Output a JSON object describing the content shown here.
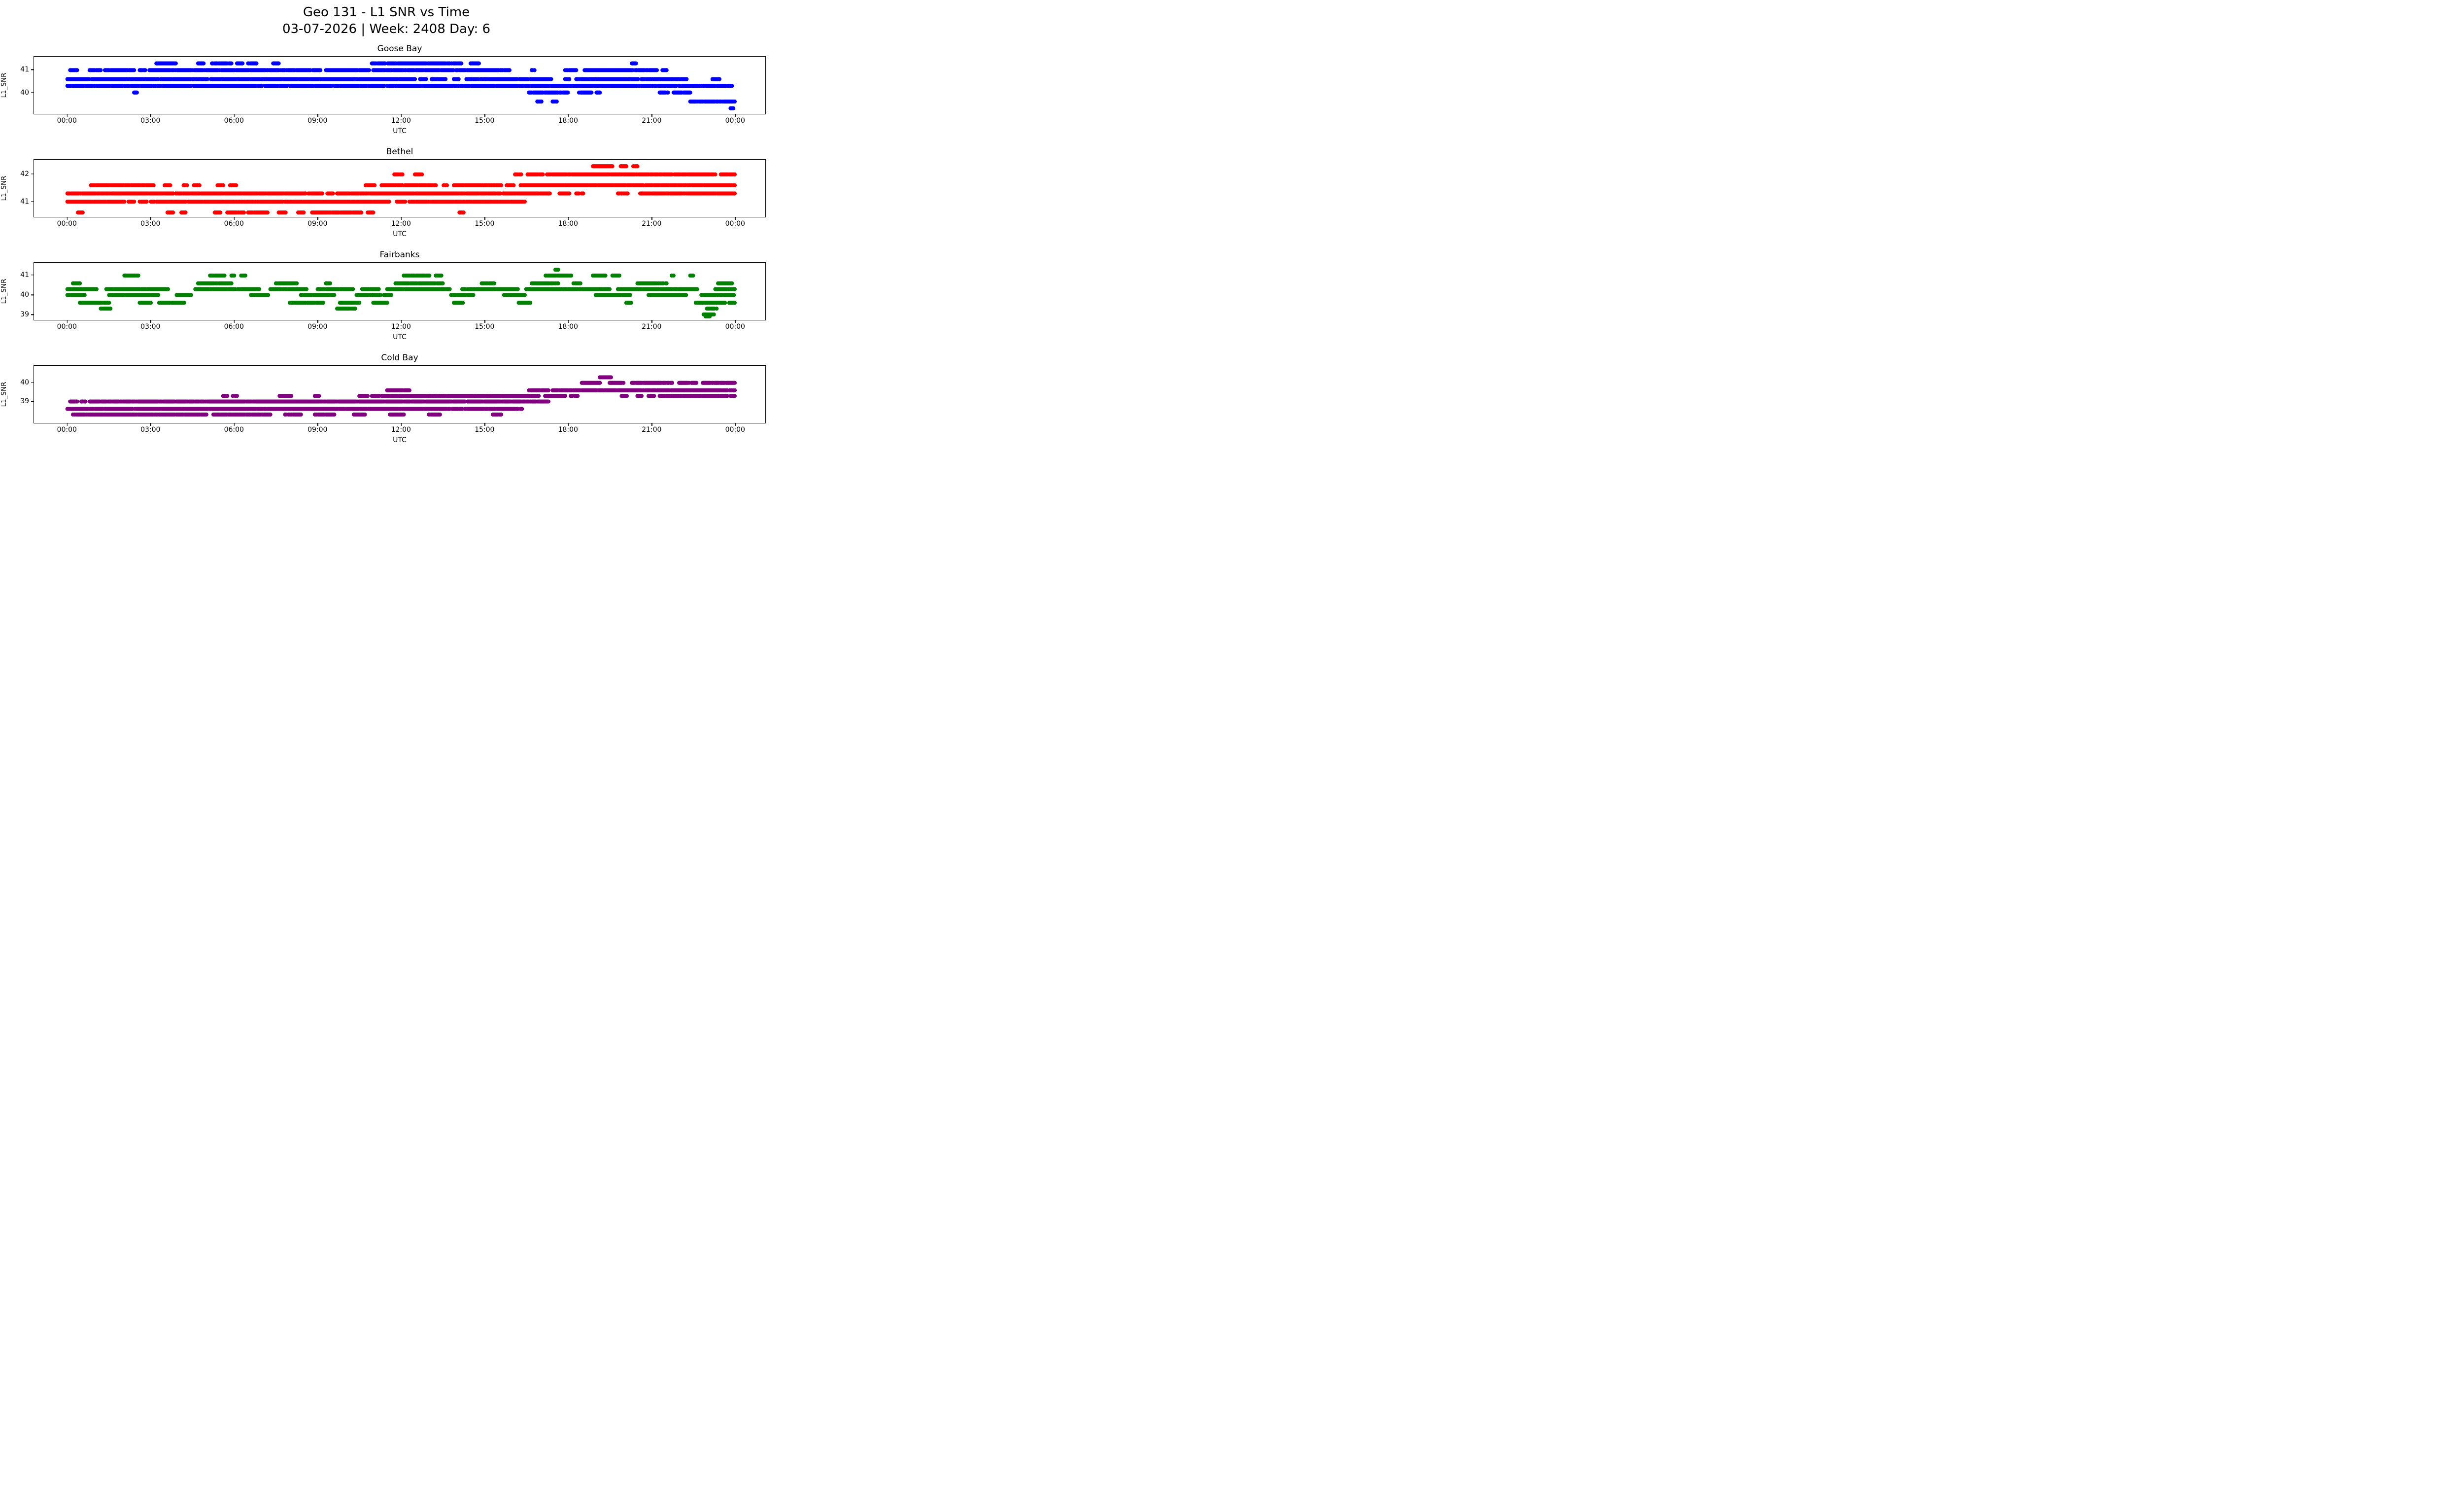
{
  "figure": {
    "title_line1": "Geo 131 - L1 SNR vs Time",
    "title_line2": "03-07-2026 | Week: 2408 Day: 6"
  },
  "axis": {
    "xlabel": "UTC",
    "ylabel": "L1_SNR",
    "xlim_hours": [
      -1.2,
      25.1
    ],
    "xtick_hours": [
      0,
      3,
      6,
      9,
      12,
      15,
      18,
      21,
      24
    ],
    "xticklabels": [
      "00:00",
      "03:00",
      "06:00",
      "09:00",
      "12:00",
      "15:00",
      "18:00",
      "21:00",
      "00:00"
    ],
    "grid": false,
    "legend": "none",
    "run_format": "[start_hour_utc, end_hour_utc] dense runs of scatter points at the given L1 SNR level"
  },
  "chart_data": [
    {
      "type": "scatter",
      "title": "Goose Bay",
      "color": "#0000ff",
      "xlabel": "UTC",
      "ylabel": "L1_SNR",
      "ylim": [
        39.05,
        41.6
      ],
      "yticks": [
        41,
        40
      ],
      "yticklabels": [
        "41",
        "40"
      ],
      "series": [
        {
          "snr": 41.3,
          "runs": [
            [
              3.2,
              3.9
            ],
            [
              4.7,
              4.9
            ],
            [
              5.2,
              5.9
            ],
            [
              6.1,
              6.3
            ],
            [
              6.5,
              6.8
            ],
            [
              7.4,
              7.6
            ],
            [
              10.95,
              14.2
            ],
            [
              14.5,
              14.8
            ],
            [
              20.3,
              20.45
            ]
          ]
        },
        {
          "snr": 41.0,
          "runs": [
            [
              0.1,
              0.35
            ],
            [
              0.8,
              1.2
            ],
            [
              1.35,
              2.4
            ],
            [
              2.6,
              2.8
            ],
            [
              2.95,
              9.1
            ],
            [
              9.3,
              10.85
            ],
            [
              11.0,
              15.9
            ],
            [
              16.7,
              16.8
            ],
            [
              17.9,
              18.3
            ],
            [
              18.6,
              21.2
            ],
            [
              21.4,
              21.55
            ]
          ]
        },
        {
          "snr": 40.6,
          "runs": [
            [
              0.0,
              12.5
            ],
            [
              12.65,
              12.9
            ],
            [
              13.1,
              13.6
            ],
            [
              13.9,
              14.1
            ],
            [
              14.35,
              17.4
            ],
            [
              17.9,
              18.05
            ],
            [
              18.3,
              22.3
            ],
            [
              23.2,
              23.45
            ]
          ]
        },
        {
          "snr": 40.3,
          "runs": [
            [
              0.0,
              7.0
            ],
            [
              7.1,
              11.4
            ],
            [
              11.5,
              16.2
            ],
            [
              16.25,
              21.9
            ],
            [
              22.0,
              23.9
            ]
          ]
        },
        {
          "snr": 40.0,
          "runs": [
            [
              2.4,
              2.5
            ],
            [
              16.6,
              18.0
            ],
            [
              18.4,
              18.85
            ],
            [
              19.0,
              19.15
            ],
            [
              21.3,
              21.6
            ],
            [
              21.8,
              22.4
            ]
          ]
        },
        {
          "snr": 39.6,
          "runs": [
            [
              16.9,
              17.05
            ],
            [
              17.45,
              17.6
            ],
            [
              22.4,
              24.0
            ]
          ]
        },
        {
          "snr": 39.3,
          "runs": [
            [
              23.85,
              23.95
            ]
          ]
        }
      ]
    },
    {
      "type": "scatter",
      "title": "Bethel",
      "color": "#ff0000",
      "xlabel": "UTC",
      "ylabel": "L1_SNR",
      "ylim": [
        40.44,
        42.54
      ],
      "yticks": [
        42,
        41
      ],
      "yticklabels": [
        "42",
        "41"
      ],
      "series": [
        {
          "snr": 42.3,
          "runs": [
            [
              18.9,
              19.6
            ],
            [
              19.9,
              20.1
            ],
            [
              20.35,
              20.5
            ]
          ]
        },
        {
          "snr": 42.0,
          "runs": [
            [
              11.7,
              12.05
            ],
            [
              12.5,
              12.75
            ],
            [
              16.1,
              16.35
            ],
            [
              16.55,
              17.1
            ],
            [
              17.25,
              23.3
            ],
            [
              23.5,
              24.0
            ]
          ]
        },
        {
          "snr": 41.6,
          "runs": [
            [
              0.85,
              3.1
            ],
            [
              3.5,
              3.7
            ],
            [
              4.15,
              4.3
            ],
            [
              4.55,
              4.75
            ],
            [
              5.4,
              5.6
            ],
            [
              5.85,
              6.1
            ],
            [
              10.7,
              11.05
            ],
            [
              11.3,
              13.25
            ],
            [
              13.5,
              13.65
            ],
            [
              13.9,
              15.6
            ],
            [
              15.8,
              16.05
            ],
            [
              16.3,
              24.0
            ]
          ]
        },
        {
          "snr": 41.3,
          "runs": [
            [
              0.0,
              9.2
            ],
            [
              9.35,
              9.55
            ],
            [
              9.7,
              17.35
            ],
            [
              17.7,
              18.05
            ],
            [
              18.3,
              18.55
            ],
            [
              19.8,
              20.15
            ],
            [
              20.6,
              24.0
            ]
          ]
        },
        {
          "snr": 41.0,
          "runs": [
            [
              0.0,
              2.05
            ],
            [
              2.2,
              2.4
            ],
            [
              2.6,
              2.85
            ],
            [
              3.0,
              11.6
            ],
            [
              11.85,
              12.15
            ],
            [
              12.3,
              16.45
            ]
          ]
        },
        {
          "snr": 40.6,
          "runs": [
            [
              0.35,
              0.55
            ],
            [
              3.6,
              3.8
            ],
            [
              4.1,
              4.25
            ],
            [
              5.3,
              5.5
            ],
            [
              5.75,
              6.35
            ],
            [
              6.5,
              7.2
            ],
            [
              7.6,
              7.85
            ],
            [
              8.3,
              8.5
            ],
            [
              8.8,
              10.6
            ],
            [
              10.8,
              11.0
            ],
            [
              14.1,
              14.25
            ]
          ]
        }
      ]
    },
    {
      "type": "scatter",
      "title": "Fairbanks",
      "color": "#008000",
      "xlabel": "UTC",
      "ylabel": "L1_SNR",
      "ylim": [
        38.72,
        41.66
      ],
      "yticks": [
        41,
        40,
        39
      ],
      "yticklabels": [
        "41",
        "40",
        "39"
      ],
      "series": [
        {
          "snr": 41.3,
          "runs": [
            [
              17.55,
              17.65
            ]
          ]
        },
        {
          "snr": 41.0,
          "runs": [
            [
              2.05,
              2.55
            ],
            [
              5.1,
              5.65
            ],
            [
              5.9,
              6.0
            ],
            [
              6.25,
              6.4
            ],
            [
              12.1,
              13.05
            ],
            [
              13.25,
              13.45
            ],
            [
              17.2,
              18.15
            ],
            [
              18.9,
              19.35
            ],
            [
              19.6,
              19.85
            ],
            [
              21.7,
              21.8
            ],
            [
              22.4,
              22.5
            ]
          ]
        },
        {
          "snr": 40.6,
          "runs": [
            [
              0.2,
              0.45
            ],
            [
              4.7,
              5.9
            ],
            [
              7.5,
              8.25
            ],
            [
              9.3,
              9.45
            ],
            [
              11.8,
              13.5
            ],
            [
              14.9,
              15.35
            ],
            [
              16.7,
              17.65
            ],
            [
              18.2,
              18.45
            ],
            [
              20.5,
              21.55
            ],
            [
              23.4,
              23.9
            ]
          ]
        },
        {
          "snr": 40.3,
          "runs": [
            [
              0.0,
              1.05
            ],
            [
              1.4,
              3.65
            ],
            [
              4.6,
              6.9
            ],
            [
              7.3,
              8.6
            ],
            [
              9.0,
              10.3
            ],
            [
              10.6,
              11.2
            ],
            [
              11.5,
              13.75
            ],
            [
              14.2,
              16.2
            ],
            [
              16.5,
              19.5
            ],
            [
              19.8,
              22.65
            ],
            [
              23.3,
              24.0
            ]
          ]
        },
        {
          "snr": 40.0,
          "runs": [
            [
              0.0,
              0.65
            ],
            [
              1.5,
              3.3
            ],
            [
              3.9,
              4.45
            ],
            [
              6.6,
              7.25
            ],
            [
              8.4,
              9.6
            ],
            [
              10.4,
              11.65
            ],
            [
              13.8,
              14.6
            ],
            [
              15.7,
              16.45
            ],
            [
              19.0,
              20.3
            ],
            [
              20.9,
              22.25
            ],
            [
              22.8,
              24.0
            ]
          ]
        },
        {
          "snr": 39.6,
          "runs": [
            [
              0.45,
              1.5
            ],
            [
              2.6,
              3.0
            ],
            [
              3.3,
              4.2
            ],
            [
              8.0,
              9.2
            ],
            [
              9.8,
              10.5
            ],
            [
              11.0,
              11.5
            ],
            [
              13.9,
              14.25
            ],
            [
              16.2,
              16.65
            ],
            [
              20.1,
              20.3
            ],
            [
              22.6,
              23.65
            ],
            [
              23.8,
              24.0
            ]
          ]
        },
        {
          "snr": 39.3,
          "runs": [
            [
              1.2,
              1.55
            ],
            [
              9.7,
              10.35
            ],
            [
              23.0,
              23.35
            ]
          ]
        },
        {
          "snr": 39.0,
          "runs": [
            [
              22.85,
              23.25
            ]
          ]
        },
        {
          "snr": 38.9,
          "runs": [
            [
              22.95,
              23.1
            ]
          ]
        }
      ]
    },
    {
      "type": "scatter",
      "title": "Cold Bay",
      "color": "#800080",
      "xlabel": "UTC",
      "ylabel": "L1_SNR",
      "ylim": [
        37.85,
        40.92
      ],
      "yticks": [
        40,
        39
      ],
      "yticklabels": [
        "40",
        "39"
      ],
      "series": [
        {
          "snr": 40.3,
          "runs": [
            [
              19.15,
              19.55
            ]
          ]
        },
        {
          "snr": 40.0,
          "runs": [
            [
              18.5,
              19.15
            ],
            [
              19.5,
              20.0
            ],
            [
              20.3,
              21.75
            ],
            [
              22.0,
              22.65
            ],
            [
              22.85,
              24.0
            ]
          ]
        },
        {
          "snr": 39.6,
          "runs": [
            [
              11.5,
              12.3
            ],
            [
              16.6,
              17.3
            ],
            [
              17.45,
              24.0
            ]
          ]
        },
        {
          "snr": 39.3,
          "runs": [
            [
              5.6,
              5.75
            ],
            [
              5.95,
              6.1
            ],
            [
              7.6,
              8.05
            ],
            [
              8.9,
              9.05
            ],
            [
              10.5,
              10.8
            ],
            [
              10.95,
              16.95
            ],
            [
              17.15,
              17.9
            ],
            [
              18.1,
              18.35
            ],
            [
              19.9,
              20.15
            ],
            [
              20.5,
              20.65
            ],
            [
              20.9,
              21.1
            ],
            [
              21.3,
              24.0
            ]
          ]
        },
        {
          "snr": 39.0,
          "runs": [
            [
              0.1,
              0.35
            ],
            [
              0.5,
              0.65
            ],
            [
              0.8,
              17.3
            ]
          ]
        },
        {
          "snr": 38.6,
          "runs": [
            [
              0.0,
              14.2
            ],
            [
              14.3,
              16.35
            ]
          ]
        },
        {
          "snr": 38.3,
          "runs": [
            [
              0.2,
              5.0
            ],
            [
              5.25,
              7.3
            ],
            [
              7.8,
              8.4
            ],
            [
              8.9,
              9.6
            ],
            [
              10.3,
              10.7
            ],
            [
              11.6,
              12.1
            ],
            [
              13.0,
              13.4
            ],
            [
              15.3,
              15.6
            ]
          ]
        }
      ]
    }
  ]
}
